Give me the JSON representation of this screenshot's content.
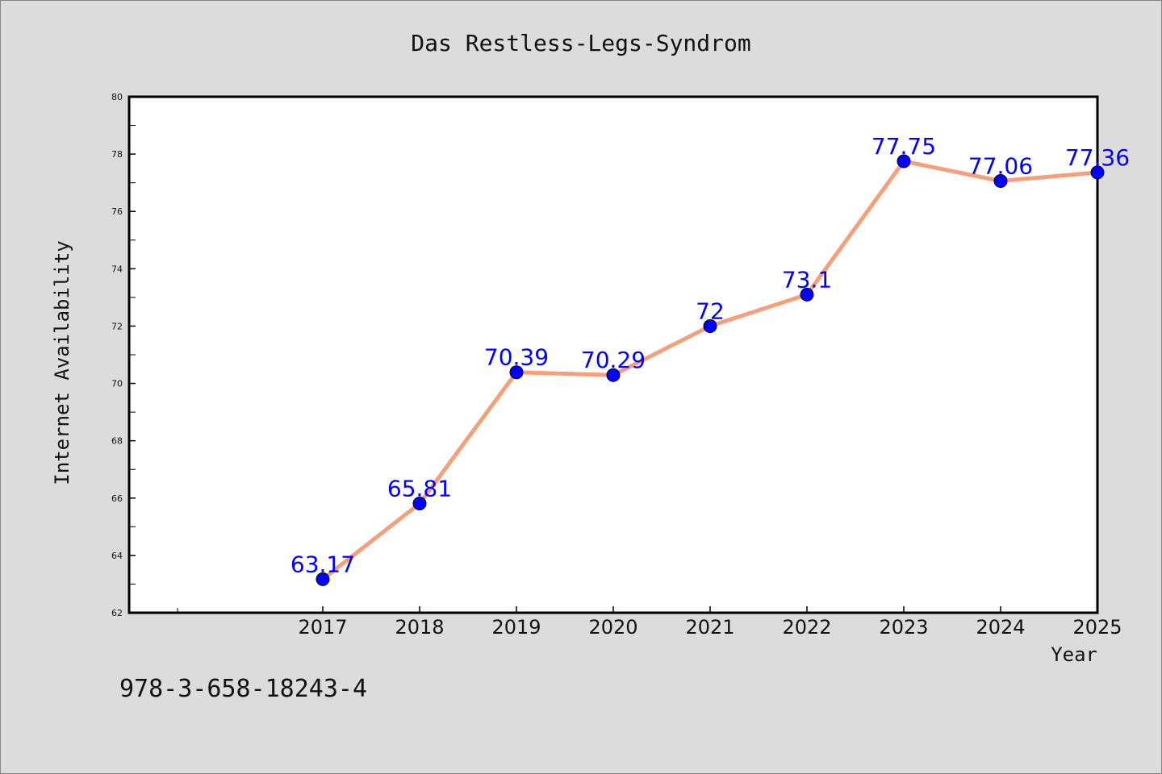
{
  "chart_data": {
    "type": "line",
    "title": "Das Restless-Legs-Syndrom",
    "xlabel": "Year",
    "ylabel": "Internet Availability",
    "categories": [
      "2017",
      "2018",
      "2019",
      "2020",
      "2021",
      "2022",
      "2023",
      "2024",
      "2025"
    ],
    "series": [
      {
        "values": [
          63.17,
          65.81,
          70.39,
          70.29,
          72,
          73.1,
          77.75,
          77.06,
          77.36
        ],
        "data_labels": [
          "63.17",
          "65.81",
          "70.39",
          "70.29",
          "72",
          "73.1",
          "77.75",
          "77.06",
          "77.36"
        ]
      }
    ],
    "ylim": [
      62,
      80
    ],
    "yticks": [
      "62",
      "64",
      "66",
      "68",
      "70",
      "72",
      "74",
      "76",
      "78",
      "80"
    ],
    "grid": false,
    "colors": {
      "line": "#f5a07a",
      "marker": "#0000ff",
      "data_label": "#0000ff",
      "background": "#dcdcdc",
      "plot_background": "#ffffff"
    }
  },
  "footnote": "978-3-658-18243-4"
}
